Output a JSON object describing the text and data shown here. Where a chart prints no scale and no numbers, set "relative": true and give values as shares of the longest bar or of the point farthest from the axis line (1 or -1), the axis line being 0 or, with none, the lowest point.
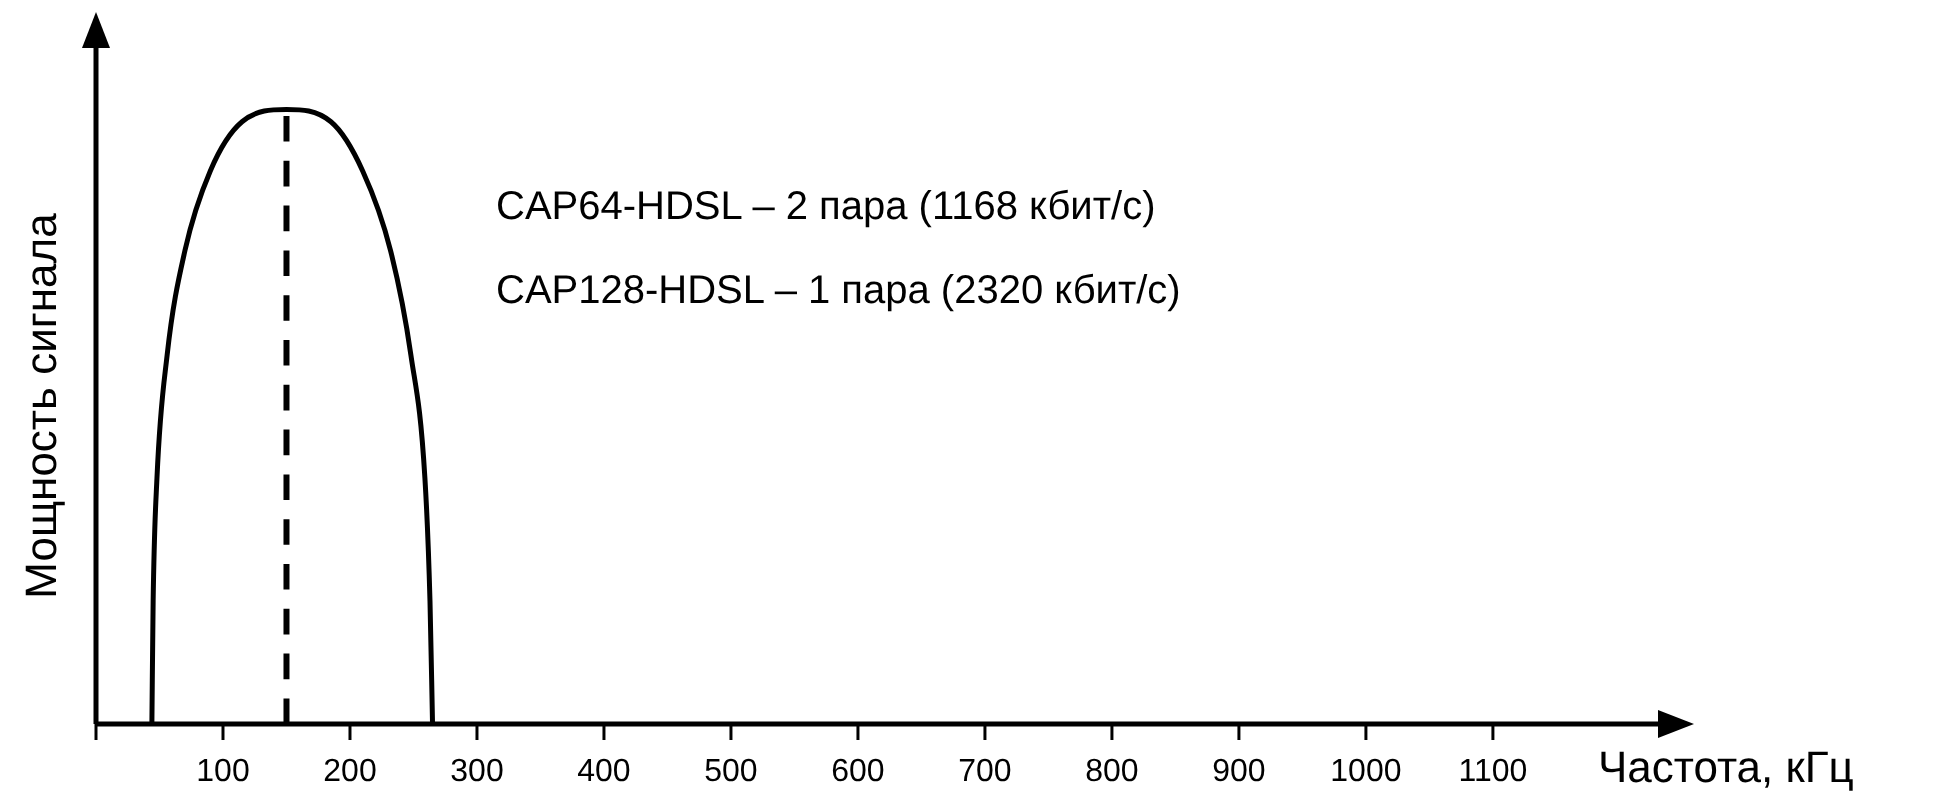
{
  "chart_data": {
    "type": "line",
    "relative": true,
    "xlabel": "Частота, кГц",
    "ylabel": "Мощность сигнала",
    "x": [
      44,
      45,
      48,
      56,
      70,
      90,
      115,
      150,
      185,
      210,
      232,
      248,
      259,
      263,
      265
    ],
    "series": [
      {
        "color": "#000000",
        "values": [
          0,
          0.2,
          0.4,
          0.6,
          0.77,
          0.9,
          0.98,
          1,
          0.98,
          0.9,
          0.77,
          0.6,
          0.4,
          0.2,
          0
        ]
      }
    ],
    "xlim": [
      0,
      1230
    ],
    "xticks": [
      {
        "value": 0,
        "label": null
      },
      100,
      200,
      300,
      400,
      500,
      600,
      700,
      800,
      900,
      1000,
      1100
    ],
    "ref_lines": [
      {
        "axis": "x",
        "value": 150,
        "line_style": "dashed",
        "color": "#000000"
      }
    ],
    "annotations": [
      "CAP64-HDSL – 2 пара (1168 кбит/с)",
      "CAP128-HDSL – 1 пара (2320 кбит/с)"
    ],
    "legend": false,
    "marker": "none",
    "line_style": "solid"
  }
}
